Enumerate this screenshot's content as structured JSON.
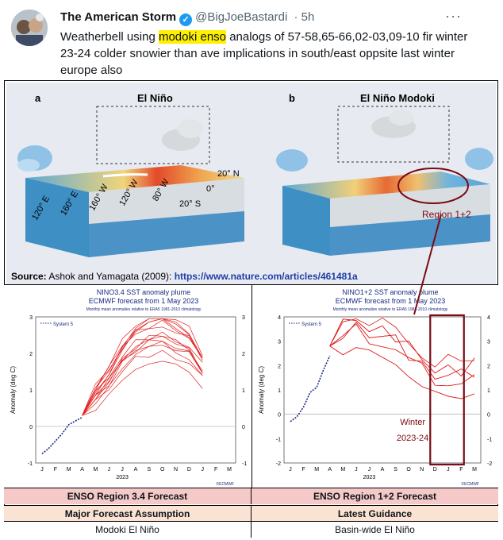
{
  "tweet": {
    "name": "The American Storm",
    "handle": "@BigJoeBastardi",
    "time": "· 5h",
    "more": "···",
    "text_pre": "Weatherbell using ",
    "text_highlight": "modoki enso",
    "text_post": " analogs of 57-58,65-66,02-03,09-10 fir winter 23-24  colder snowier than ave implications in south/east oppsite last winter  europe also"
  },
  "diagram": {
    "panel_a_letter": "a",
    "panel_a_title": "El Niño",
    "panel_b_letter": "b",
    "panel_b_title": "El Niño Modoki",
    "lat_n": "20° N",
    "lat_0": "0°",
    "lat_s": "20° S",
    "lon_labels": [
      "120° E",
      "160° E",
      "160° W",
      "120° W",
      "80° W"
    ],
    "region_label": "Region 1+2",
    "source_label": "Source:",
    "source_text": " Ashok and Yamagata (2009): ",
    "source_link": "https://www.nature.com/articles/461481a"
  },
  "plot_left": {
    "title": "NINO3.4 SST anomaly plume",
    "subtitle": "ECMWF forecast from 1 May 2023",
    "note": "Monthly mean anomalies relative to ERA5 1981-2010 climatology",
    "legend": "System 5",
    "ylabel": "Anomaly (deg C)",
    "year": "2023",
    "months": [
      "J",
      "F",
      "M",
      "A",
      "M",
      "J",
      "J",
      "A",
      "S",
      "O",
      "N",
      "D",
      "J",
      "F",
      "M"
    ],
    "yticks": [
      "-1",
      "0",
      "1",
      "2",
      "3"
    ],
    "logo": "©ECMWF"
  },
  "plot_right": {
    "title": "NINO1+2 SST anomaly plume",
    "subtitle": "ECMWF forecast from 1 May 2023",
    "note": "Monthly mean anomalies relative to ERA5 1981-2010 climatology",
    "legend": "System 5",
    "ylabel": "Anomaly (deg C)",
    "year": "2023",
    "months": [
      "J",
      "F",
      "M",
      "A",
      "M",
      "J",
      "J",
      "A",
      "S",
      "O",
      "N",
      "D",
      "J",
      "F",
      "M"
    ],
    "yticks": [
      "-2",
      "-1",
      "0",
      "1",
      "2",
      "3",
      "4"
    ],
    "winter_label_1": "Winter",
    "winter_label_2": "2023-24",
    "logo": "©ECMWF"
  },
  "table": {
    "region34": "ENSO Region 3.4 Forecast",
    "region12": "ENSO Region 1+2 Forecast",
    "assumption_header": "Major Forecast Assumption",
    "guidance_header": "Latest Guidance",
    "assumption_value": "Modoki El Niño",
    "guidance_value": "Basin-wide El Niño"
  },
  "colors": {
    "plume": "#e02020",
    "observed": "#1a2a80",
    "highlight_box": "#7a0a14",
    "pink_row": "#f4c9c7",
    "peach_row": "#fbe3d3"
  }
}
